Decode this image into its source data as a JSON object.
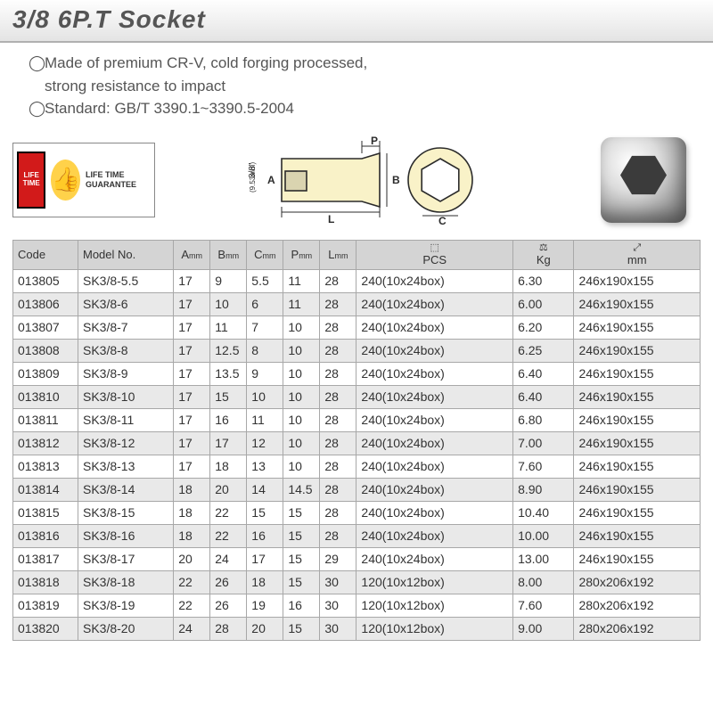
{
  "title": "3/8 6P.T Socket",
  "desc": {
    "line1": "Made of premium CR-V, cold forging processed,",
    "line2": "strong resistance to impact",
    "line3": "Standard: GB/T 3390.1~3390.5-2004"
  },
  "guarantee": {
    "badge": "LIFE TIME",
    "text": "LIFE TIME GUARANTEE"
  },
  "diagram": {
    "drive_label": "3/8\"",
    "drive_mm": "(9.53mm)",
    "dim_A": "A",
    "dim_B": "B",
    "dim_C": "C",
    "dim_P": "P",
    "dim_L": "L"
  },
  "columns": {
    "code": "Code",
    "model": "Model No.",
    "a": "A",
    "b": "B",
    "c": "C",
    "p": "P",
    "l": "L",
    "unit_mm": "mm",
    "pcs": "PCS",
    "kg": "Kg",
    "mm": "mm"
  },
  "rows": [
    {
      "code": "013805",
      "model": "SK3/8-5.5",
      "a": "17",
      "b": "9",
      "c": "5.5",
      "p": "11",
      "l": "28",
      "pcs": "240(10x24box)",
      "kg": "6.30",
      "mm": "246x190x155"
    },
    {
      "code": "013806",
      "model": "SK3/8-6",
      "a": "17",
      "b": "10",
      "c": "6",
      "p": "11",
      "l": "28",
      "pcs": "240(10x24box)",
      "kg": "6.00",
      "mm": "246x190x155"
    },
    {
      "code": "013807",
      "model": "SK3/8-7",
      "a": "17",
      "b": "11",
      "c": "7",
      "p": "10",
      "l": "28",
      "pcs": "240(10x24box)",
      "kg": "6.20",
      "mm": "246x190x155"
    },
    {
      "code": "013808",
      "model": "SK3/8-8",
      "a": "17",
      "b": "12.5",
      "c": "8",
      "p": "10",
      "l": "28",
      "pcs": "240(10x24box)",
      "kg": "6.25",
      "mm": "246x190x155"
    },
    {
      "code": "013809",
      "model": "SK3/8-9",
      "a": "17",
      "b": "13.5",
      "c": "9",
      "p": "10",
      "l": "28",
      "pcs": "240(10x24box)",
      "kg": "6.40",
      "mm": "246x190x155"
    },
    {
      "code": "013810",
      "model": "SK3/8-10",
      "a": "17",
      "b": "15",
      "c": "10",
      "p": "10",
      "l": "28",
      "pcs": "240(10x24box)",
      "kg": "6.40",
      "mm": "246x190x155"
    },
    {
      "code": "013811",
      "model": "SK3/8-11",
      "a": "17",
      "b": "16",
      "c": "11",
      "p": "10",
      "l": "28",
      "pcs": "240(10x24box)",
      "kg": "6.80",
      "mm": "246x190x155"
    },
    {
      "code": "013812",
      "model": "SK3/8-12",
      "a": "17",
      "b": "17",
      "c": "12",
      "p": "10",
      "l": "28",
      "pcs": "240(10x24box)",
      "kg": "7.00",
      "mm": "246x190x155"
    },
    {
      "code": "013813",
      "model": "SK3/8-13",
      "a": "17",
      "b": "18",
      "c": "13",
      "p": "10",
      "l": "28",
      "pcs": "240(10x24box)",
      "kg": "7.60",
      "mm": "246x190x155"
    },
    {
      "code": "013814",
      "model": "SK3/8-14",
      "a": "18",
      "b": "20",
      "c": "14",
      "p": "14.5",
      "l": "28",
      "pcs": "240(10x24box)",
      "kg": "8.90",
      "mm": "246x190x155"
    },
    {
      "code": "013815",
      "model": "SK3/8-15",
      "a": "18",
      "b": "22",
      "c": "15",
      "p": "15",
      "l": "28",
      "pcs": "240(10x24box)",
      "kg": "10.40",
      "mm": "246x190x155"
    },
    {
      "code": "013816",
      "model": "SK3/8-16",
      "a": "18",
      "b": "22",
      "c": "16",
      "p": "15",
      "l": "28",
      "pcs": "240(10x24box)",
      "kg": "10.00",
      "mm": "246x190x155"
    },
    {
      "code": "013817",
      "model": "SK3/8-17",
      "a": "20",
      "b": "24",
      "c": "17",
      "p": "15",
      "l": "29",
      "pcs": "240(10x24box)",
      "kg": "13.00",
      "mm": "246x190x155"
    },
    {
      "code": "013818",
      "model": "SK3/8-18",
      "a": "22",
      "b": "26",
      "c": "18",
      "p": "15",
      "l": "30",
      "pcs": "120(10x12box)",
      "kg": "8.00",
      "mm": "280x206x192"
    },
    {
      "code": "013819",
      "model": "SK3/8-19",
      "a": "22",
      "b": "26",
      "c": "19",
      "p": "16",
      "l": "30",
      "pcs": "120(10x12box)",
      "kg": "7.60",
      "mm": "280x206x192"
    },
    {
      "code": "013820",
      "model": "SK3/8-20",
      "a": "24",
      "b": "28",
      "c": "20",
      "p": "15",
      "l": "30",
      "pcs": "120(10x12box)",
      "kg": "9.00",
      "mm": "280x206x192"
    }
  ],
  "colors": {
    "header_bg": "#d4d4d4",
    "row_alt_bg": "#e9e9e9",
    "border": "#a8a8a8",
    "title": "#555555",
    "diagram_fill": "#f9f2c8",
    "diagram_line": "#2b2b2b"
  }
}
